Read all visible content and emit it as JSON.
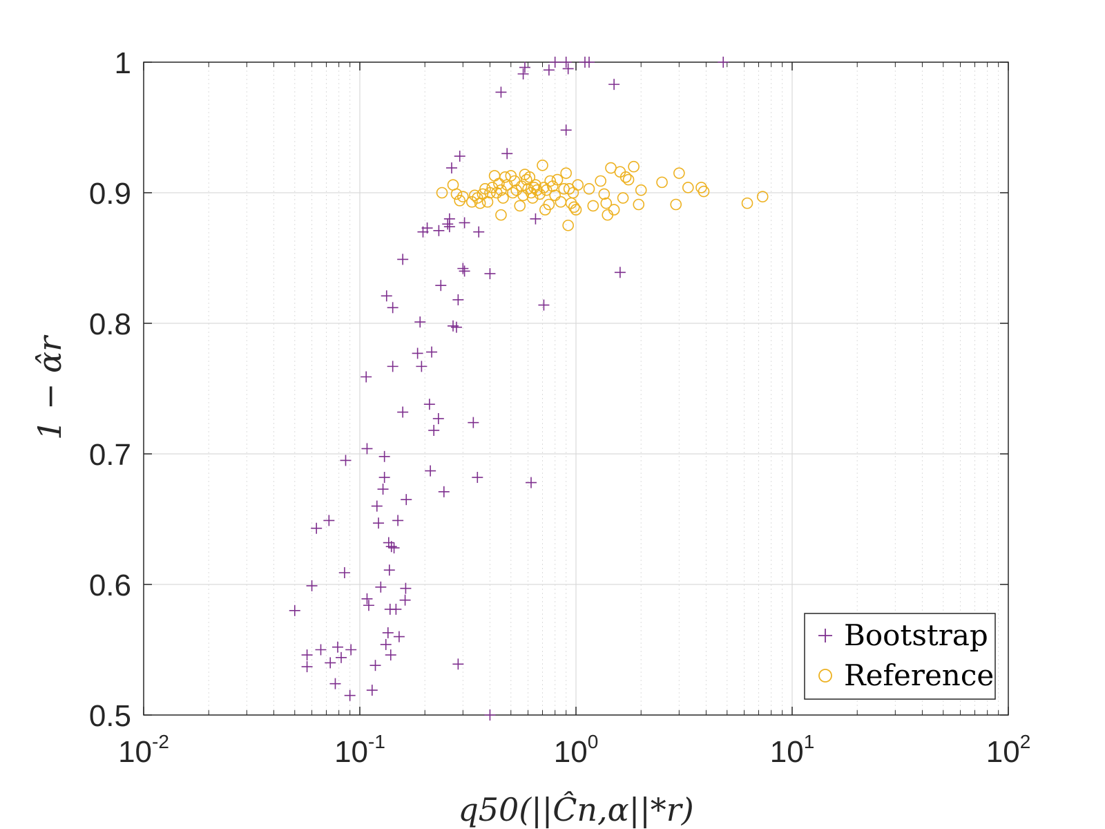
{
  "chart_data": {
    "type": "scatter",
    "title": "",
    "xlabel": "q50(||Ĉn,α||*r)",
    "ylabel": "1 − α̂r",
    "xscale": "log",
    "xlim": [
      0.01,
      100
    ],
    "ylim": [
      0.5,
      1.0
    ],
    "grid": true,
    "legend_location": "bottom-right",
    "x_tick_labels": [
      {
        "base": "10",
        "exp": "-2"
      },
      {
        "base": "10",
        "exp": "-1"
      },
      {
        "base": "10",
        "exp": "0"
      },
      {
        "base": "10",
        "exp": "1"
      },
      {
        "base": "10",
        "exp": "2"
      }
    ],
    "y_tick_labels": [
      "0.5",
      "0.6",
      "0.7",
      "0.8",
      "0.9",
      "1"
    ],
    "series": [
      {
        "name": "Bootstrap",
        "marker": "plus",
        "color": "#7e2f8e",
        "points": [
          [
            0.05,
            0.58
          ],
          [
            0.057,
            0.546
          ],
          [
            0.057,
            0.537
          ],
          [
            0.06,
            0.599
          ],
          [
            0.063,
            0.643
          ],
          [
            0.066,
            0.55
          ],
          [
            0.072,
            0.649
          ],
          [
            0.073,
            0.54
          ],
          [
            0.077,
            0.524
          ],
          [
            0.079,
            0.552
          ],
          [
            0.082,
            0.544
          ],
          [
            0.085,
            0.609
          ],
          [
            0.086,
            0.695
          ],
          [
            0.09,
            0.515
          ],
          [
            0.091,
            0.55
          ],
          [
            0.107,
            0.759
          ],
          [
            0.108,
            0.589
          ],
          [
            0.108,
            0.704
          ],
          [
            0.11,
            0.584
          ],
          [
            0.114,
            0.519
          ],
          [
            0.118,
            0.538
          ],
          [
            0.12,
            0.66
          ],
          [
            0.122,
            0.647
          ],
          [
            0.125,
            0.598
          ],
          [
            0.128,
            0.673
          ],
          [
            0.13,
            0.682
          ],
          [
            0.13,
            0.698
          ],
          [
            0.132,
            0.554
          ],
          [
            0.133,
            0.821
          ],
          [
            0.135,
            0.563
          ],
          [
            0.136,
            0.632
          ],
          [
            0.137,
            0.611
          ],
          [
            0.138,
            0.581
          ],
          [
            0.139,
            0.546
          ],
          [
            0.14,
            0.629
          ],
          [
            0.142,
            0.767
          ],
          [
            0.142,
            0.812
          ],
          [
            0.144,
            0.628
          ],
          [
            0.147,
            0.581
          ],
          [
            0.15,
            0.649
          ],
          [
            0.152,
            0.56
          ],
          [
            0.158,
            0.849
          ],
          [
            0.158,
            0.732
          ],
          [
            0.162,
            0.588
          ],
          [
            0.163,
            0.597
          ],
          [
            0.164,
            0.665
          ],
          [
            0.185,
            0.777
          ],
          [
            0.19,
            0.801
          ],
          [
            0.193,
            0.767
          ],
          [
            0.196,
            0.87
          ],
          [
            0.205,
            0.873
          ],
          [
            0.21,
            0.738
          ],
          [
            0.212,
            0.687
          ],
          [
            0.215,
            0.778
          ],
          [
            0.22,
            0.718
          ],
          [
            0.231,
            0.727
          ],
          [
            0.232,
            0.871
          ],
          [
            0.237,
            0.829
          ],
          [
            0.245,
            0.671
          ],
          [
            0.255,
            0.876
          ],
          [
            0.26,
            0.88
          ],
          [
            0.26,
            0.874
          ],
          [
            0.266,
            0.919
          ],
          [
            0.27,
            0.798
          ],
          [
            0.28,
            0.797
          ],
          [
            0.285,
            0.818
          ],
          [
            0.285,
            0.539
          ],
          [
            0.29,
            0.928
          ],
          [
            0.3,
            0.842
          ],
          [
            0.305,
            0.84
          ],
          [
            0.305,
            0.877
          ],
          [
            0.335,
            0.724
          ],
          [
            0.35,
            0.682
          ],
          [
            0.355,
            0.87
          ],
          [
            0.4,
            0.838
          ],
          [
            0.4,
            0.5
          ],
          [
            0.45,
            0.977
          ],
          [
            0.48,
            0.93
          ],
          [
            0.57,
            0.991
          ],
          [
            0.58,
            0.996
          ],
          [
            0.62,
            0.678
          ],
          [
            0.65,
            0.88
          ],
          [
            0.71,
            0.814
          ],
          [
            0.75,
            0.994
          ],
          [
            0.8,
            1.0
          ],
          [
            0.9,
            1.0
          ],
          [
            0.9,
            0.948
          ],
          [
            0.92,
            0.995
          ],
          [
            1.1,
            1.0
          ],
          [
            1.15,
            1.0
          ],
          [
            1.5,
            0.983
          ],
          [
            1.6,
            0.839
          ],
          [
            4.8,
            1.0
          ]
        ]
      },
      {
        "name": "Reference",
        "marker": "circle",
        "color": "#edb120",
        "points": [
          [
            0.24,
            0.9
          ],
          [
            0.27,
            0.906
          ],
          [
            0.28,
            0.899
          ],
          [
            0.29,
            0.894
          ],
          [
            0.3,
            0.897
          ],
          [
            0.33,
            0.893
          ],
          [
            0.34,
            0.898
          ],
          [
            0.35,
            0.896
          ],
          [
            0.36,
            0.892
          ],
          [
            0.37,
            0.899
          ],
          [
            0.38,
            0.903
          ],
          [
            0.39,
            0.893
          ],
          [
            0.4,
            0.9
          ],
          [
            0.41,
            0.904
          ],
          [
            0.42,
            0.913
          ],
          [
            0.43,
            0.9
          ],
          [
            0.44,
            0.907
          ],
          [
            0.45,
            0.902
          ],
          [
            0.46,
            0.896
          ],
          [
            0.45,
            0.883
          ],
          [
            0.47,
            0.912
          ],
          [
            0.48,
            0.906
          ],
          [
            0.5,
            0.913
          ],
          [
            0.51,
            0.9
          ],
          [
            0.52,
            0.909
          ],
          [
            0.53,
            0.902
          ],
          [
            0.55,
            0.89
          ],
          [
            0.56,
            0.905
          ],
          [
            0.57,
            0.898
          ],
          [
            0.58,
            0.914
          ],
          [
            0.59,
            0.91
          ],
          [
            0.6,
            0.903
          ],
          [
            0.61,
            0.912
          ],
          [
            0.62,
            0.9
          ],
          [
            0.63,
            0.896
          ],
          [
            0.64,
            0.904
          ],
          [
            0.65,
            0.906
          ],
          [
            0.66,
            0.902
          ],
          [
            0.68,
            0.899
          ],
          [
            0.7,
            0.921
          ],
          [
            0.71,
            0.904
          ],
          [
            0.72,
            0.887
          ],
          [
            0.73,
            0.902
          ],
          [
            0.75,
            0.891
          ],
          [
            0.76,
            0.909
          ],
          [
            0.78,
            0.905
          ],
          [
            0.8,
            0.898
          ],
          [
            0.82,
            0.91
          ],
          [
            0.85,
            0.893
          ],
          [
            0.88,
            0.903
          ],
          [
            0.9,
            0.915
          ],
          [
            0.92,
            0.875
          ],
          [
            0.93,
            0.903
          ],
          [
            0.95,
            0.892
          ],
          [
            0.97,
            0.9
          ],
          [
            0.98,
            0.889
          ],
          [
            1.0,
            0.887
          ],
          [
            1.02,
            0.906
          ],
          [
            1.15,
            0.903
          ],
          [
            1.2,
            0.89
          ],
          [
            1.3,
            0.909
          ],
          [
            1.35,
            0.899
          ],
          [
            1.38,
            0.892
          ],
          [
            1.4,
            0.883
          ],
          [
            1.45,
            0.919
          ],
          [
            1.5,
            0.887
          ],
          [
            1.6,
            0.916
          ],
          [
            1.65,
            0.896
          ],
          [
            1.7,
            0.912
          ],
          [
            1.75,
            0.91
          ],
          [
            1.85,
            0.92
          ],
          [
            1.95,
            0.891
          ],
          [
            2.0,
            0.902
          ],
          [
            2.5,
            0.908
          ],
          [
            2.9,
            0.891
          ],
          [
            3.0,
            0.915
          ],
          [
            3.3,
            0.904
          ],
          [
            3.8,
            0.904
          ],
          [
            3.9,
            0.901
          ],
          [
            6.2,
            0.892
          ],
          [
            7.3,
            0.897
          ]
        ]
      }
    ]
  }
}
